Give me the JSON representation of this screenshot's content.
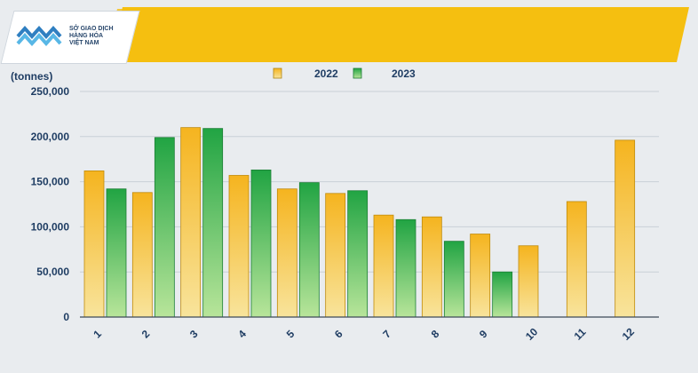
{
  "logo": {
    "line1": "SỞ GIAO DỊCH",
    "line2": "HÀNG HÓA",
    "line3": "VIỆT NAM"
  },
  "colors": {
    "banner": "#f5bf10",
    "bar_2022": "#f5b41f",
    "bar_2023": "#2fb24a",
    "axis_text": "#1f3d63"
  },
  "chart_data": {
    "type": "bar",
    "unit_label": "(tonnes)",
    "categories": [
      "1",
      "2",
      "3",
      "4",
      "5",
      "6",
      "7",
      "8",
      "9",
      "10",
      "11",
      "12"
    ],
    "series": [
      {
        "name": "2022",
        "values": [
          162000,
          138000,
          210000,
          157000,
          142000,
          137000,
          113000,
          111000,
          92000,
          79000,
          128000,
          196000
        ]
      },
      {
        "name": "2023",
        "values": [
          142000,
          199000,
          209000,
          163000,
          149000,
          140000,
          108000,
          84000,
          50000,
          null,
          null,
          null
        ]
      }
    ],
    "yticks": [
      "0",
      "50,000",
      "100,000",
      "150,000",
      "200,000",
      "250,000"
    ],
    "ylim": [
      0,
      250000
    ],
    "grid": true,
    "legend_position": "top-center"
  }
}
